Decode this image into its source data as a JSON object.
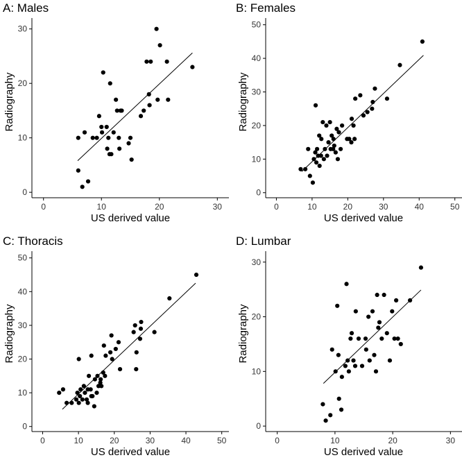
{
  "figure": {
    "layout": "2x2 grid of scatter plots with fitted regression lines"
  },
  "chart_data": [
    {
      "type": "scatter",
      "title": "A: Males",
      "xlabel": "US derived value",
      "ylabel": "Radiography",
      "xlim": [
        -2,
        32
      ],
      "ylim": [
        -1,
        32
      ],
      "xticks": [
        0,
        10,
        20,
        30
      ],
      "yticks": [
        0,
        10,
        20,
        30
      ],
      "x": [
        6,
        6,
        6.7,
        7.1,
        7.7,
        8.5,
        9.2,
        9.6,
        10,
        10.1,
        10.3,
        10.9,
        11,
        11.2,
        11.4,
        11.5,
        11.7,
        12.1,
        12.5,
        12.7,
        13,
        13.1,
        13.3,
        13.5,
        14.7,
        15,
        15.2,
        16.8,
        17.3,
        17.8,
        18.2,
        18.3,
        18.5,
        19.5,
        19.7,
        20.1,
        21.3,
        21.5,
        25.7
      ],
      "y": [
        10,
        4,
        1,
        11,
        2,
        10,
        10,
        14,
        12,
        11,
        22,
        12,
        8,
        10,
        7,
        20,
        7,
        11,
        17,
        15,
        10,
        8,
        15,
        15,
        9,
        10,
        6,
        14,
        15,
        24,
        18,
        16,
        24,
        30,
        17,
        27,
        24,
        17,
        23
      ],
      "fit": {
        "x": [
          5.9,
          25.7
        ],
        "y": [
          5.8,
          25.6
        ]
      }
    },
    {
      "type": "scatter",
      "title": "B: Females",
      "xlabel": "US derived value",
      "ylabel": "Radiography",
      "xlim": [
        -3,
        52
      ],
      "ylim": [
        -1.5,
        52
      ],
      "xticks": [
        0,
        10,
        20,
        30,
        40,
        50
      ],
      "yticks": [
        0,
        10,
        20,
        30,
        40,
        50
      ],
      "x": [
        6.8,
        8.1,
        8.9,
        9.4,
        10.2,
        10.5,
        10.9,
        11,
        11.2,
        11.4,
        11.7,
        12,
        12.5,
        12.6,
        13,
        13.3,
        13.6,
        14,
        14.2,
        14.6,
        15,
        15.2,
        15.5,
        16,
        16.2,
        16.6,
        16.9,
        17.2,
        17.5,
        18,
        18.4,
        19.8,
        20.4,
        21,
        21.1,
        21.6,
        22.1,
        23.5,
        24.4,
        25.5,
        26.8,
        27,
        27.6,
        31,
        34.6,
        40.9,
        21.9,
        12.1,
        15.9
      ],
      "y": [
        7,
        7,
        13,
        5,
        3,
        10,
        12,
        26,
        9,
        13,
        11,
        17,
        11,
        16,
        21,
        10,
        13,
        20,
        11,
        15,
        21,
        13,
        17,
        16,
        14,
        12,
        19,
        10,
        18,
        13,
        20,
        16,
        16,
        15,
        22,
        20,
        28,
        29,
        23,
        24,
        25,
        27,
        31,
        28,
        38,
        45,
        16,
        8,
        13
      ],
      "fit": {
        "x": [
          7.1,
          41.2
        ],
        "y": [
          6.3,
          40.9
        ]
      }
    },
    {
      "type": "scatter",
      "title": "C: Thoracis",
      "xlabel": "US derived value",
      "ylabel": "Radiography",
      "xlim": [
        -3,
        52
      ],
      "ylim": [
        -1.5,
        52
      ],
      "xticks": [
        0,
        10,
        20,
        30,
        40,
        50
      ],
      "yticks": [
        0,
        10,
        20,
        30,
        40,
        50
      ],
      "x": [
        4.6,
        5.7,
        6.7,
        8.1,
        9.4,
        9.7,
        10.1,
        10.1,
        10.4,
        10.6,
        11.1,
        11.5,
        11.8,
        12.3,
        12.6,
        12.6,
        12.9,
        13.4,
        13.6,
        13.9,
        14.4,
        14.6,
        15.1,
        15.3,
        15.6,
        16.1,
        16.2,
        16.4,
        16.9,
        17.1,
        17.4,
        17.6,
        19.2,
        19.4,
        20.4,
        21.2,
        21.6,
        25.4,
        25.8,
        26.2,
        27.2,
        27.4,
        27.5,
        31.2,
        35.4,
        42.9,
        26.1,
        13.6,
        18.9
      ],
      "y": [
        10,
        11,
        7,
        7,
        8,
        10,
        7,
        20,
        9,
        11,
        8,
        12,
        10,
        8,
        11,
        7,
        15,
        11,
        21,
        9,
        6,
        14,
        10,
        15,
        12,
        13,
        14,
        12,
        16,
        24,
        15,
        21,
        27,
        20,
        23,
        25,
        17,
        28,
        30,
        22,
        26,
        29,
        31,
        28,
        38,
        45,
        17,
        9,
        22
      ],
      "fit": {
        "x": [
          5.5,
          42.7
        ],
        "y": [
          5.1,
          42.5
        ]
      }
    },
    {
      "type": "scatter",
      "title": "D: Lumbar",
      "xlabel": "US derived value",
      "ylabel": "Radiography",
      "xlim": [
        -2,
        32
      ],
      "ylim": [
        -1,
        32
      ],
      "xticks": [
        0,
        10,
        20,
        30
      ],
      "yticks": [
        0,
        10,
        20,
        30
      ],
      "x": [
        7.9,
        8.4,
        9.2,
        9.5,
        10.1,
        10.4,
        10.6,
        10.7,
        11.2,
        11.8,
        12,
        12.2,
        12.4,
        12.7,
        12.9,
        13.2,
        13.5,
        13.6,
        14.1,
        14.7,
        15.3,
        15.4,
        15.8,
        16,
        16.5,
        16.8,
        17.1,
        17.3,
        17.5,
        17.7,
        18.1,
        18.5,
        19,
        19.5,
        19.9,
        20.3,
        20.6,
        20.9,
        21.4,
        23,
        24.9,
        11.1
      ],
      "y": [
        4,
        1,
        2,
        14,
        10,
        22,
        13,
        5,
        9,
        11,
        26,
        12,
        10,
        16,
        17,
        12,
        11,
        21,
        16,
        11,
        16,
        14,
        20,
        12,
        21,
        13,
        10,
        24,
        18,
        19,
        16,
        24,
        17,
        12,
        21,
        16,
        23,
        16,
        15,
        23,
        29,
        3
      ],
      "fit": {
        "x": [
          8,
          24.9
        ],
        "y": [
          7.8,
          24.9
        ]
      }
    }
  ]
}
